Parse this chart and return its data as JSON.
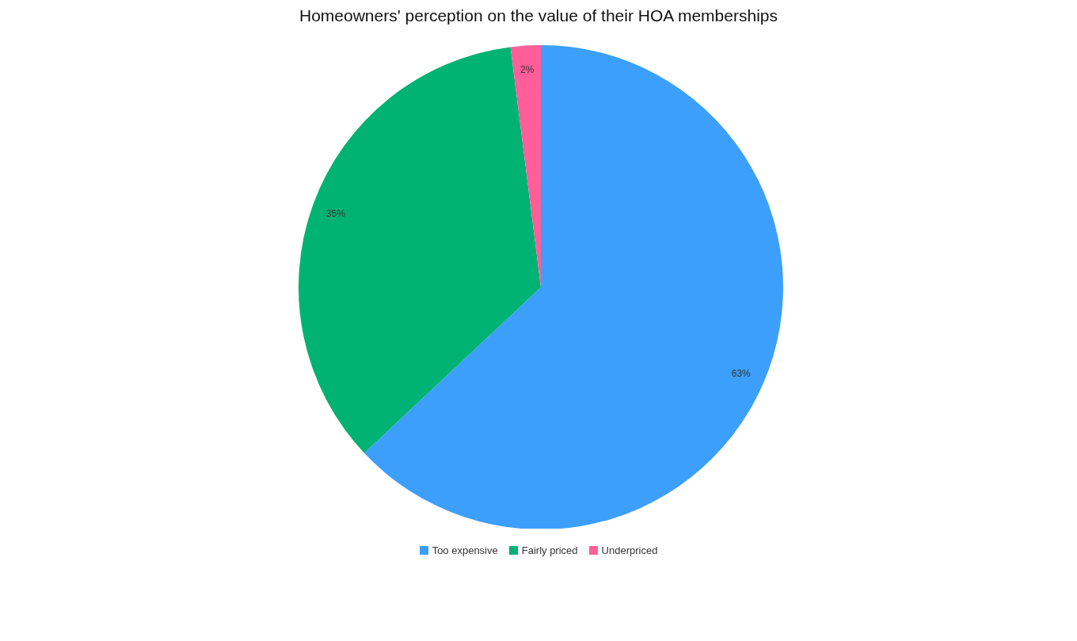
{
  "chart_data": {
    "type": "pie",
    "title": "Homeowners' perception on the value of their HOA memberships",
    "categories": [
      "Too expensive",
      "Fairly priced",
      "Underpriced"
    ],
    "values": [
      63,
      35,
      2
    ],
    "colors": [
      "#3d9ffc",
      "#00b274",
      "#ff5e99"
    ],
    "value_labels": [
      "63%",
      "35%",
      "2%"
    ],
    "legend": "bottom"
  }
}
